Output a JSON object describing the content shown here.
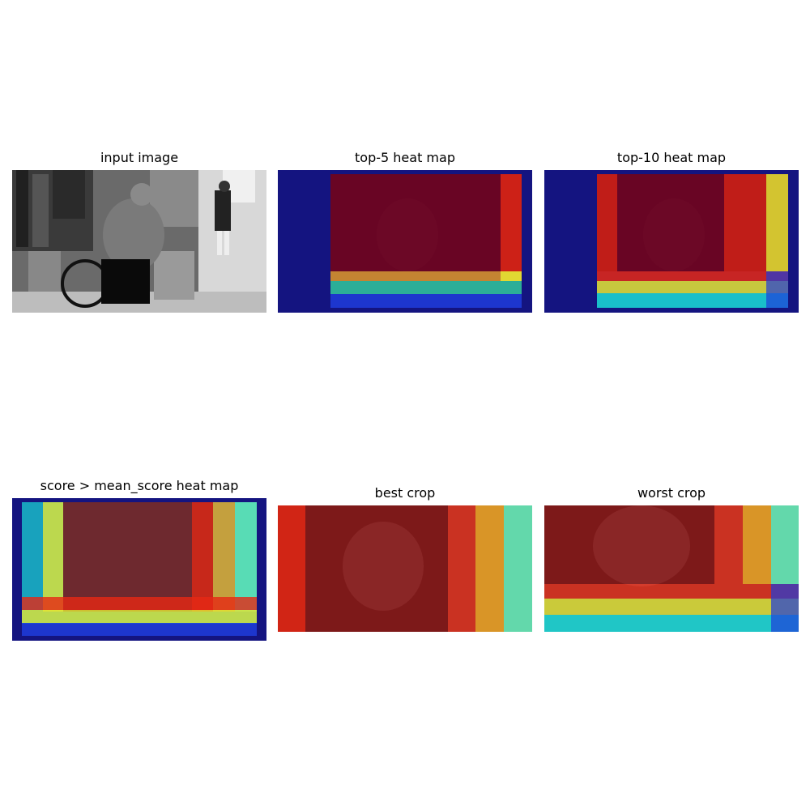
{
  "figure": {
    "panels": [
      {
        "id": "input",
        "title": "input image"
      },
      {
        "id": "top5",
        "title": "top-5 heat map"
      },
      {
        "id": "top10",
        "title": "top-10 heat map"
      },
      {
        "id": "mean",
        "title": "score > mean_score heat map"
      },
      {
        "id": "best",
        "title": "best crop"
      },
      {
        "id": "worst",
        "title": "worst crop"
      }
    ]
  },
  "colors": {
    "heat_dark_blue": "#00008b",
    "heat_blue": "#1e3cdc",
    "heat_cyan": "#19d2d2",
    "heat_teal": "#2fbf9a",
    "heat_green": "#64e6b4",
    "heat_yellow": "#e6e632",
    "heat_orange": "#f0a01e",
    "heat_red": "#e62814",
    "heat_dark_red": "#8b0000"
  }
}
